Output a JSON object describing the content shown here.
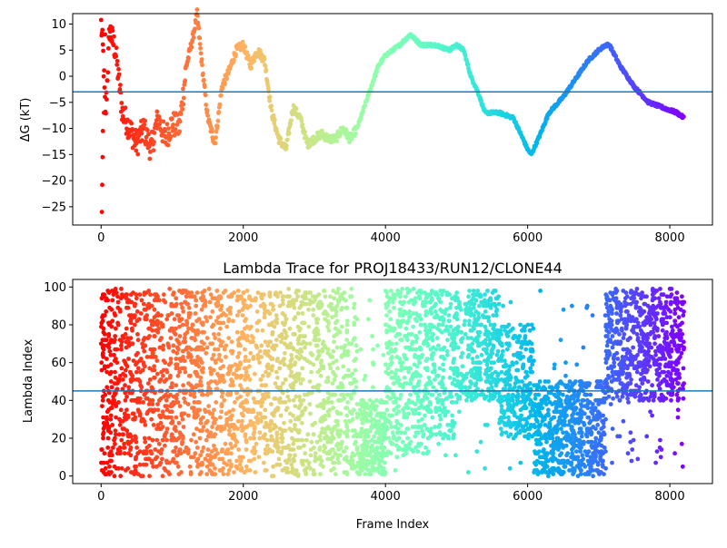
{
  "chart_data": [
    {
      "type": "scatter",
      "title": "",
      "xlabel": "",
      "ylabel": "ΔG (kT)",
      "xlim": [
        -400,
        8600
      ],
      "ylim": [
        -28.5,
        12
      ],
      "xticks": [
        0,
        2000,
        4000,
        6000,
        8000
      ],
      "xtick_labels": [
        "0",
        "2000",
        "4000",
        "6000",
        "8000"
      ],
      "yticks": [
        -25,
        -20,
        -15,
        -10,
        -5,
        0,
        5,
        10
      ],
      "ytick_labels": [
        "−25",
        "−20",
        "−15",
        "−10",
        "−5",
        "0",
        "5",
        "10"
      ],
      "hline": -3.0,
      "hline_color": "#1f77b4",
      "colormap": "rainbow (red at frame 0 → violet at last frame)",
      "x_range": [
        0,
        8200
      ],
      "trace_points": [
        {
          "x": 0,
          "y": 10
        },
        {
          "x": 30,
          "y": 4
        },
        {
          "x": 60,
          "y": -8
        },
        {
          "x": 120,
          "y": 9
        },
        {
          "x": 200,
          "y": 5
        },
        {
          "x": 300,
          "y": -7
        },
        {
          "x": 400,
          "y": -10
        },
        {
          "x": 500,
          "y": -13
        },
        {
          "x": 600,
          "y": -10
        },
        {
          "x": 700,
          "y": -14
        },
        {
          "x": 800,
          "y": -8
        },
        {
          "x": 900,
          "y": -12
        },
        {
          "x": 1000,
          "y": -9
        },
        {
          "x": 1100,
          "y": -10
        },
        {
          "x": 1200,
          "y": 2
        },
        {
          "x": 1300,
          "y": 8
        },
        {
          "x": 1350,
          "y": 12
        },
        {
          "x": 1420,
          "y": 2
        },
        {
          "x": 1500,
          "y": -8
        },
        {
          "x": 1600,
          "y": -13
        },
        {
          "x": 1700,
          "y": -2
        },
        {
          "x": 1800,
          "y": 1
        },
        {
          "x": 1900,
          "y": 5
        },
        {
          "x": 2000,
          "y": 6
        },
        {
          "x": 2100,
          "y": 2
        },
        {
          "x": 2200,
          "y": 5
        },
        {
          "x": 2300,
          "y": 3
        },
        {
          "x": 2400,
          "y": -7
        },
        {
          "x": 2500,
          "y": -12
        },
        {
          "x": 2600,
          "y": -14
        },
        {
          "x": 2700,
          "y": -6
        },
        {
          "x": 2800,
          "y": -8
        },
        {
          "x": 2900,
          "y": -13
        },
        {
          "x": 3000,
          "y": -12
        },
        {
          "x": 3100,
          "y": -11
        },
        {
          "x": 3200,
          "y": -12
        },
        {
          "x": 3300,
          "y": -12
        },
        {
          "x": 3400,
          "y": -10
        },
        {
          "x": 3500,
          "y": -12
        },
        {
          "x": 3600,
          "y": -10
        },
        {
          "x": 3700,
          "y": -6
        },
        {
          "x": 3800,
          "y": -2
        },
        {
          "x": 3900,
          "y": 2
        },
        {
          "x": 4000,
          "y": 4
        },
        {
          "x": 4200,
          "y": 6
        },
        {
          "x": 4350,
          "y": 8
        },
        {
          "x": 4500,
          "y": 6
        },
        {
          "x": 4700,
          "y": 6
        },
        {
          "x": 4900,
          "y": 5
        },
        {
          "x": 5000,
          "y": 6
        },
        {
          "x": 5100,
          "y": 5
        },
        {
          "x": 5200,
          "y": 0
        },
        {
          "x": 5300,
          "y": -3
        },
        {
          "x": 5400,
          "y": -7
        },
        {
          "x": 5600,
          "y": -7
        },
        {
          "x": 5800,
          "y": -8
        },
        {
          "x": 5900,
          "y": -11
        },
        {
          "x": 6000,
          "y": -14
        },
        {
          "x": 6050,
          "y": -15
        },
        {
          "x": 6150,
          "y": -12
        },
        {
          "x": 6300,
          "y": -7
        },
        {
          "x": 6500,
          "y": -4
        },
        {
          "x": 6700,
          "y": 0
        },
        {
          "x": 6850,
          "y": 3
        },
        {
          "x": 7000,
          "y": 5
        },
        {
          "x": 7100,
          "y": 6
        },
        {
          "x": 7150,
          "y": 6
        },
        {
          "x": 7300,
          "y": 2
        },
        {
          "x": 7500,
          "y": -2
        },
        {
          "x": 7700,
          "y": -5
        },
        {
          "x": 7900,
          "y": -6
        },
        {
          "x": 8100,
          "y": -7
        },
        {
          "x": 8200,
          "y": -8
        }
      ],
      "early_outliers": [
        {
          "x": 10,
          "y": -26
        },
        {
          "x": 15,
          "y": -20.8
        },
        {
          "x": 20,
          "y": -15.5
        },
        {
          "x": 25,
          "y": -10.5
        },
        {
          "x": 40,
          "y": -7
        },
        {
          "x": 55,
          "y": 8
        }
      ]
    },
    {
      "type": "scatter",
      "title": "Lambda Trace for PROJ18433/RUN12/CLONE44",
      "xlabel": "Frame Index",
      "ylabel": "Lambda Index",
      "xlim": [
        -400,
        8600
      ],
      "ylim": [
        -4,
        104
      ],
      "xticks": [
        0,
        2000,
        4000,
        6000,
        8000
      ],
      "xtick_labels": [
        "0",
        "2000",
        "4000",
        "6000",
        "8000"
      ],
      "yticks": [
        0,
        20,
        40,
        60,
        80,
        100
      ],
      "ytick_labels": [
        "0",
        "20",
        "40",
        "60",
        "80",
        "100"
      ],
      "hline": 45,
      "hline_color": "#1f77b4",
      "colormap": "rainbow (red at frame 0 → violet at last frame)",
      "x_range": [
        0,
        8200
      ],
      "lambda_range": [
        0,
        99
      ],
      "density_bands": [
        {
          "x_from": 0,
          "x_to": 3600,
          "lambda_from": 0,
          "lambda_to": 99
        },
        {
          "x_from": 3600,
          "x_to": 4000,
          "lambda_from": 0,
          "lambda_to": 40
        },
        {
          "x_from": 4000,
          "x_to": 4600,
          "lambda_from": 10,
          "lambda_to": 99
        },
        {
          "x_from": 4600,
          "x_to": 5000,
          "lambda_from": 20,
          "lambda_to": 99
        },
        {
          "x_from": 5000,
          "x_to": 5600,
          "lambda_from": 40,
          "lambda_to": 99
        },
        {
          "x_from": 5600,
          "x_to": 6100,
          "lambda_from": 20,
          "lambda_to": 80
        },
        {
          "x_from": 6100,
          "x_to": 7100,
          "lambda_from": 0,
          "lambda_to": 50
        },
        {
          "x_from": 7100,
          "x_to": 8200,
          "lambda_from": 40,
          "lambda_to": 99
        }
      ]
    }
  ]
}
